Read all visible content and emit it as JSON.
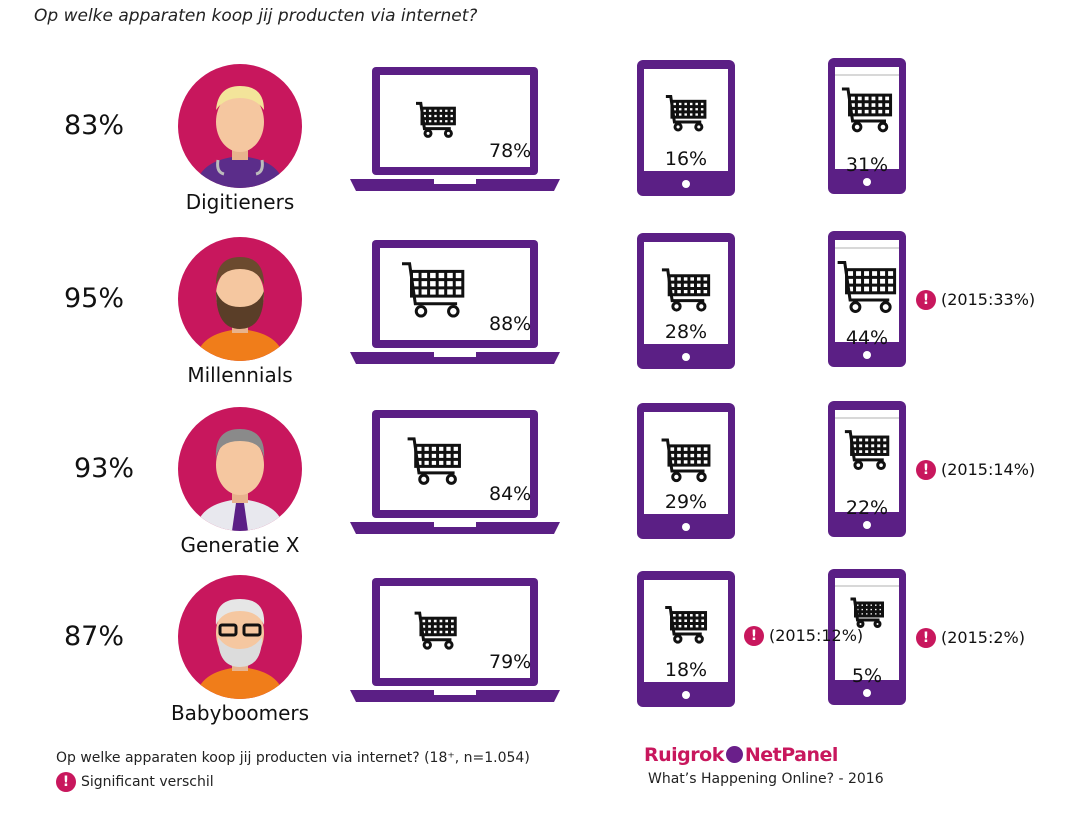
{
  "title": "Op welke apparaten koop jij producten via internet?",
  "colors": {
    "purple": "#5b1f85",
    "magenta": "#c8175d",
    "orange": "#f07d1a"
  },
  "chart_data": {
    "type": "table",
    "columns": [
      "laptop",
      "tablet",
      "smartphone"
    ],
    "rows": [
      {
        "generation": "Digitieners",
        "total": "83%",
        "laptop": "78%",
        "tablet": "16%",
        "smartphone": "31%",
        "laptop_value": 78,
        "tablet_value": 16,
        "smartphone_value": 31,
        "tablet_note": "",
        "smartphone_note": ""
      },
      {
        "generation": "Millennials",
        "total": "95%",
        "laptop": "88%",
        "tablet": "28%",
        "smartphone": "44%",
        "laptop_value": 88,
        "tablet_value": 28,
        "smartphone_value": 44,
        "tablet_note": "",
        "smartphone_note": "(2015:33%)"
      },
      {
        "generation": "Generatie X",
        "total": "93%",
        "laptop": "84%",
        "tablet": "29%",
        "smartphone": "22%",
        "laptop_value": 84,
        "tablet_value": 29,
        "smartphone_value": 22,
        "tablet_note": "",
        "smartphone_note": "(2015:14%)"
      },
      {
        "generation": "Babyboomers",
        "total": "87%",
        "laptop": "79%",
        "tablet": "18%",
        "smartphone": "5%",
        "laptop_value": 79,
        "tablet_value": 18,
        "smartphone_value": 5,
        "tablet_note": "(2015:12%)",
        "smartphone_note": "(2015:2%)"
      }
    ]
  },
  "footer": {
    "question": "Op welke apparaten koop jij producten via internet? (18⁺, n=1.054)",
    "legend_label": "Significant verschil",
    "legend_icon": "exclamation-icon",
    "brand_left": "Ruigrok",
    "brand_right": "NetPanel",
    "source": "What’s Happening Online? - 2016"
  }
}
